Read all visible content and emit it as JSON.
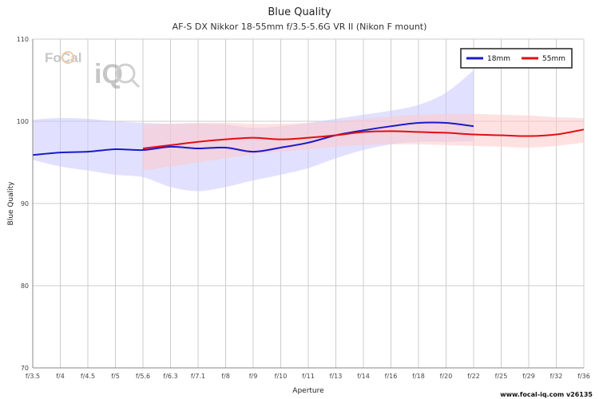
{
  "chart_data": {
    "type": "line",
    "title": "Blue Quality",
    "subtitle": "AF-S DX Nikkor 18-55mm f/3.5-5.6G VR II (Nikon F mount)",
    "xlabel": "Aperture",
    "ylabel": "Blue Quality",
    "ylim": [
      70,
      110
    ],
    "yticks": [
      70,
      80,
      90,
      100,
      110
    ],
    "categories": [
      "f/3.5",
      "f/4",
      "f/4.5",
      "f/5",
      "f/5.6",
      "f/6.3",
      "f/7.1",
      "f/8",
      "f/9",
      "f/10",
      "f/11",
      "f/13",
      "f/14",
      "f/16",
      "f/18",
      "f/20",
      "f/22",
      "f/25",
      "f/29",
      "f/32",
      "f/36"
    ],
    "grid": true,
    "legend_position": "top-right",
    "series": [
      {
        "name": "18mm",
        "color": "#1a1acc",
        "band_color": "#c8c8ff",
        "x": [
          0,
          1,
          2,
          3,
          4,
          5,
          6,
          7,
          8,
          9,
          10,
          11,
          12,
          13,
          14,
          15,
          16
        ],
        "values": [
          95.9,
          96.2,
          96.3,
          96.6,
          96.5,
          96.9,
          96.7,
          96.8,
          96.3,
          96.8,
          97.4,
          98.3,
          98.9,
          99.4,
          99.8,
          99.8,
          99.4
        ],
        "upper": [
          100.2,
          100.4,
          100.3,
          100.0,
          99.8,
          99.7,
          99.7,
          99.6,
          99.2,
          99.4,
          99.8,
          100.3,
          100.8,
          101.3,
          102.0,
          103.5,
          106.2
        ],
        "lower": [
          95.3,
          94.5,
          94.0,
          93.5,
          93.2,
          92.0,
          91.5,
          92.0,
          92.8,
          93.5,
          94.3,
          95.5,
          96.5,
          97.2,
          97.5,
          97.5,
          97.6
        ]
      },
      {
        "name": "55mm",
        "color": "#e01010",
        "band_color": "#ffc8c8",
        "x": [
          4,
          5,
          6,
          7,
          8,
          9,
          10,
          11,
          12,
          13,
          14,
          15,
          16,
          17,
          18,
          19,
          20
        ],
        "values": [
          96.7,
          97.1,
          97.5,
          97.8,
          98.0,
          97.8,
          98.0,
          98.3,
          98.7,
          98.8,
          98.7,
          98.6,
          98.4,
          98.3,
          98.2,
          98.4,
          99.0
        ],
        "upper": [
          99.6,
          99.7,
          99.8,
          99.8,
          99.7,
          99.7,
          99.8,
          100.0,
          100.3,
          100.6,
          100.8,
          100.9,
          100.9,
          100.8,
          100.7,
          100.5,
          100.4
        ],
        "lower": [
          94.0,
          94.5,
          95.0,
          95.5,
          96.0,
          96.3,
          96.6,
          96.9,
          97.1,
          97.2,
          97.2,
          97.1,
          97.0,
          96.9,
          96.8,
          97.0,
          97.4
        ]
      }
    ]
  },
  "logo": {
    "text_1": "Fo",
    "text_2": "Cal",
    "text_3": "iQ"
  },
  "footer": "www.focal-iq.com  v26135"
}
